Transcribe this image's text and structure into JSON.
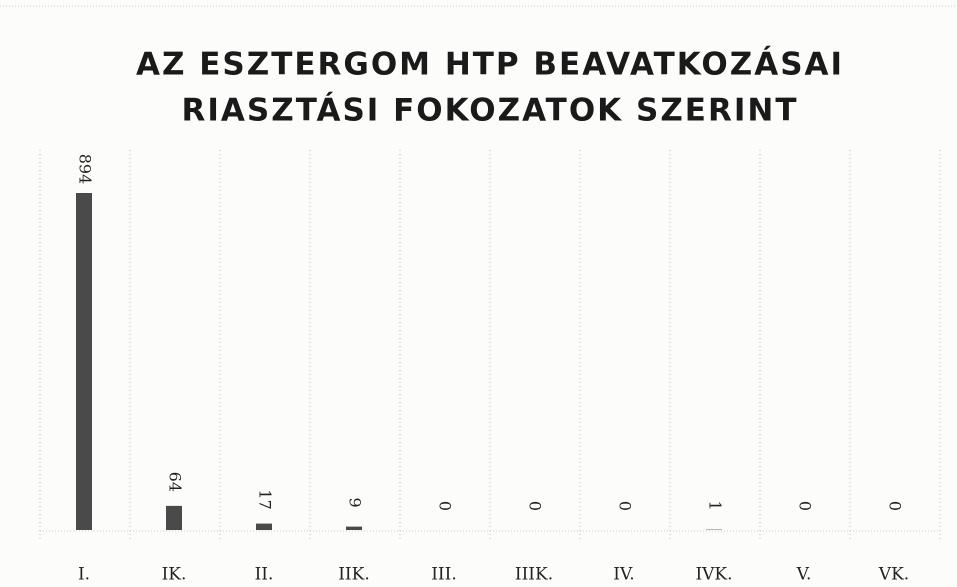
{
  "chart_data": {
    "type": "bar",
    "title": [
      "AZ ESZTERGOM HTP BEAVATKOZÁSAI",
      "RIASZTÁSI FOKOZATOK SZERINT"
    ],
    "categories": [
      "I.",
      "IK.",
      "II.",
      "IIK.",
      "III.",
      "IIIK.",
      "IV.",
      "IVK.",
      "V.",
      "VK."
    ],
    "values": [
      894,
      64,
      17,
      9,
      0,
      0,
      0,
      1,
      0,
      0
    ],
    "color": "#4a4a4a"
  }
}
